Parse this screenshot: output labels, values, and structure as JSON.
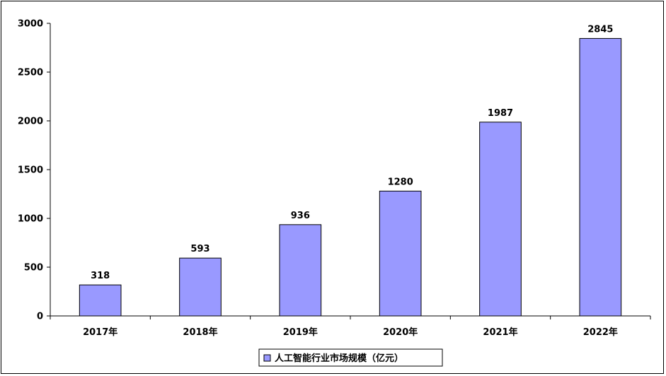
{
  "chart_data": {
    "type": "bar",
    "categories": [
      "2017年",
      "2018年",
      "2019年",
      "2020年",
      "2021年",
      "2022年"
    ],
    "series": [
      {
        "name": "人工智能行业市场规模（亿元）",
        "values": [
          318,
          593,
          936,
          1280,
          1987,
          2845
        ],
        "color": "#9999ff"
      }
    ],
    "title": "",
    "xlabel": "",
    "ylabel": "",
    "ylim": [
      0,
      3000
    ],
    "yticks": [
      0,
      500,
      1000,
      1500,
      2000,
      2500,
      3000
    ],
    "grid": false,
    "legend_position": "bottom",
    "bar_outline_color": "#000000"
  }
}
